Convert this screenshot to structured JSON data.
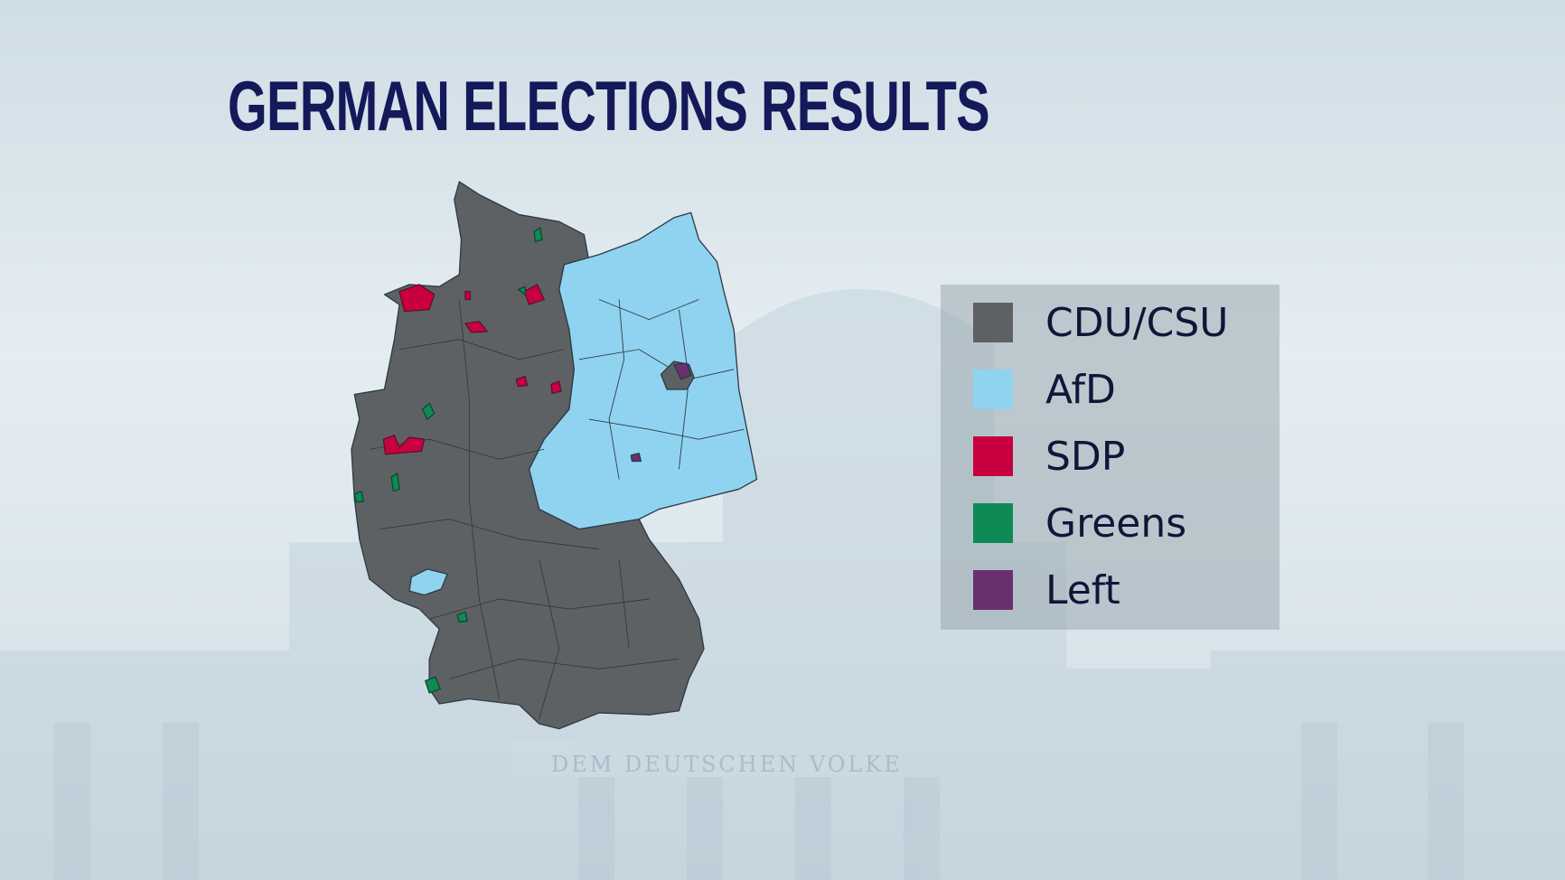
{
  "title": "GERMAN ELECTIONS RESULTS",
  "background_inscription": "DEM DEUTSCHEN VOLKE",
  "legend": [
    {
      "label": "CDU/CSU",
      "color": "#5e6164"
    },
    {
      "label": "AfD",
      "color": "#8fd3f0"
    },
    {
      "label": "SDP",
      "color": "#c8003f"
    },
    {
      "label": "Greens",
      "color": "#0e8a55"
    },
    {
      "label": "Left",
      "color": "#6a2f6e"
    }
  ],
  "map": {
    "subject": "Germany electoral constituencies",
    "west_and_south_winner": "CDU/CSU",
    "east_winner": "AfD"
  }
}
